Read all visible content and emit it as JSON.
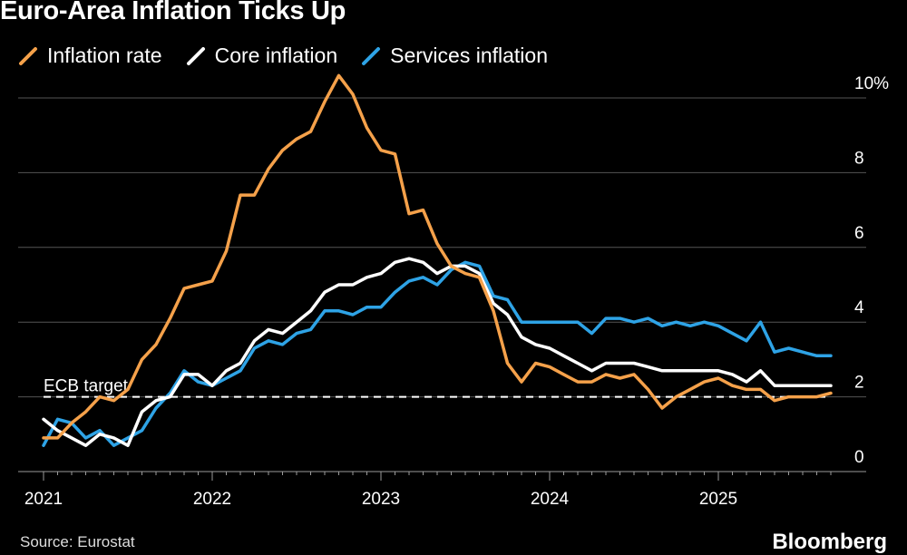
{
  "header": {
    "title": "Euro-Area Inflation Ticks Up"
  },
  "footer": {
    "source": "Source: Eurostat",
    "brand": "Bloomberg"
  },
  "colors": {
    "inflation": "#f5a14a",
    "core": "#ffffff",
    "services": "#2ea3e6",
    "grid": "#555555",
    "background": "#000000"
  },
  "chart_data": {
    "type": "line",
    "title": "Euro-Area Inflation Ticks Up",
    "xlabel": "",
    "ylabel": "",
    "x_range": [
      "2021-01",
      "2025-09"
    ],
    "xticks": [
      {
        "label": "2021",
        "date": "2021-01"
      },
      {
        "label": "2022",
        "date": "2022-01"
      },
      {
        "label": "2023",
        "date": "2023-01"
      },
      {
        "label": "2024",
        "date": "2024-01"
      },
      {
        "label": "2025",
        "date": "2025-01"
      }
    ],
    "ylim": [
      0,
      10
    ],
    "yticks": [
      {
        "value": 0,
        "label": "0"
      },
      {
        "value": 2,
        "label": "2"
      },
      {
        "value": 4,
        "label": "4"
      },
      {
        "value": 6,
        "label": "6"
      },
      {
        "value": 8,
        "label": "8"
      },
      {
        "value": 10,
        "label": "10%"
      }
    ],
    "grid": true,
    "legend_position": "top-left",
    "x": [
      "2021-01",
      "2021-02",
      "2021-03",
      "2021-04",
      "2021-05",
      "2021-06",
      "2021-07",
      "2021-08",
      "2021-09",
      "2021-10",
      "2021-11",
      "2021-12",
      "2022-01",
      "2022-02",
      "2022-03",
      "2022-04",
      "2022-05",
      "2022-06",
      "2022-07",
      "2022-08",
      "2022-09",
      "2022-10",
      "2022-11",
      "2022-12",
      "2023-01",
      "2023-02",
      "2023-03",
      "2023-04",
      "2023-05",
      "2023-06",
      "2023-07",
      "2023-08",
      "2023-09",
      "2023-10",
      "2023-11",
      "2023-12",
      "2024-01",
      "2024-02",
      "2024-03",
      "2024-04",
      "2024-05",
      "2024-06",
      "2024-07",
      "2024-08",
      "2024-09",
      "2024-10",
      "2024-11",
      "2024-12",
      "2025-01",
      "2025-02",
      "2025-03",
      "2025-04",
      "2025-05",
      "2025-06",
      "2025-07",
      "2025-08",
      "2025-09"
    ],
    "series": [
      {
        "key": "inflation",
        "name": "Inflation rate",
        "values": [
          0.9,
          0.9,
          1.3,
          1.6,
          2.0,
          1.9,
          2.2,
          3.0,
          3.4,
          4.1,
          4.9,
          5.0,
          5.1,
          5.9,
          7.4,
          7.4,
          8.1,
          8.6,
          8.9,
          9.1,
          9.9,
          10.6,
          10.1,
          9.2,
          8.6,
          8.5,
          6.9,
          7.0,
          6.1,
          5.5,
          5.3,
          5.2,
          4.3,
          2.9,
          2.4,
          2.9,
          2.8,
          2.6,
          2.4,
          2.4,
          2.6,
          2.5,
          2.6,
          2.2,
          1.7,
          2.0,
          2.2,
          2.4,
          2.5,
          2.3,
          2.2,
          2.2,
          1.9,
          2.0,
          2.0,
          2.0,
          2.1
        ]
      },
      {
        "key": "core",
        "name": "Core inflation",
        "values": [
          1.4,
          1.1,
          0.9,
          0.7,
          1.0,
          0.9,
          0.7,
          1.6,
          1.9,
          2.0,
          2.6,
          2.6,
          2.3,
          2.7,
          2.9,
          3.5,
          3.8,
          3.7,
          4.0,
          4.3,
          4.8,
          5.0,
          5.0,
          5.2,
          5.3,
          5.6,
          5.7,
          5.6,
          5.3,
          5.5,
          5.5,
          5.3,
          4.5,
          4.2,
          3.6,
          3.4,
          3.3,
          3.1,
          2.9,
          2.7,
          2.9,
          2.9,
          2.9,
          2.8,
          2.7,
          2.7,
          2.7,
          2.7,
          2.7,
          2.6,
          2.4,
          2.7,
          2.3,
          2.3,
          2.3,
          2.3,
          2.3
        ]
      },
      {
        "key": "services",
        "name": "Services inflation",
        "values": [
          0.7,
          1.4,
          1.3,
          0.9,
          1.1,
          0.7,
          0.9,
          1.1,
          1.7,
          2.1,
          2.7,
          2.4,
          2.3,
          2.5,
          2.7,
          3.3,
          3.5,
          3.4,
          3.7,
          3.8,
          4.3,
          4.3,
          4.2,
          4.4,
          4.4,
          4.8,
          5.1,
          5.2,
          5.0,
          5.4,
          5.6,
          5.5,
          4.7,
          4.6,
          4.0,
          4.0,
          4.0,
          4.0,
          4.0,
          3.7,
          4.1,
          4.1,
          4.0,
          4.1,
          3.9,
          4.0,
          3.9,
          4.0,
          3.9,
          3.7,
          3.5,
          4.0,
          3.2,
          3.3,
          3.2,
          3.1,
          3.1
        ]
      }
    ],
    "annotations": [
      {
        "label": "ECB target",
        "y": 2
      }
    ]
  }
}
